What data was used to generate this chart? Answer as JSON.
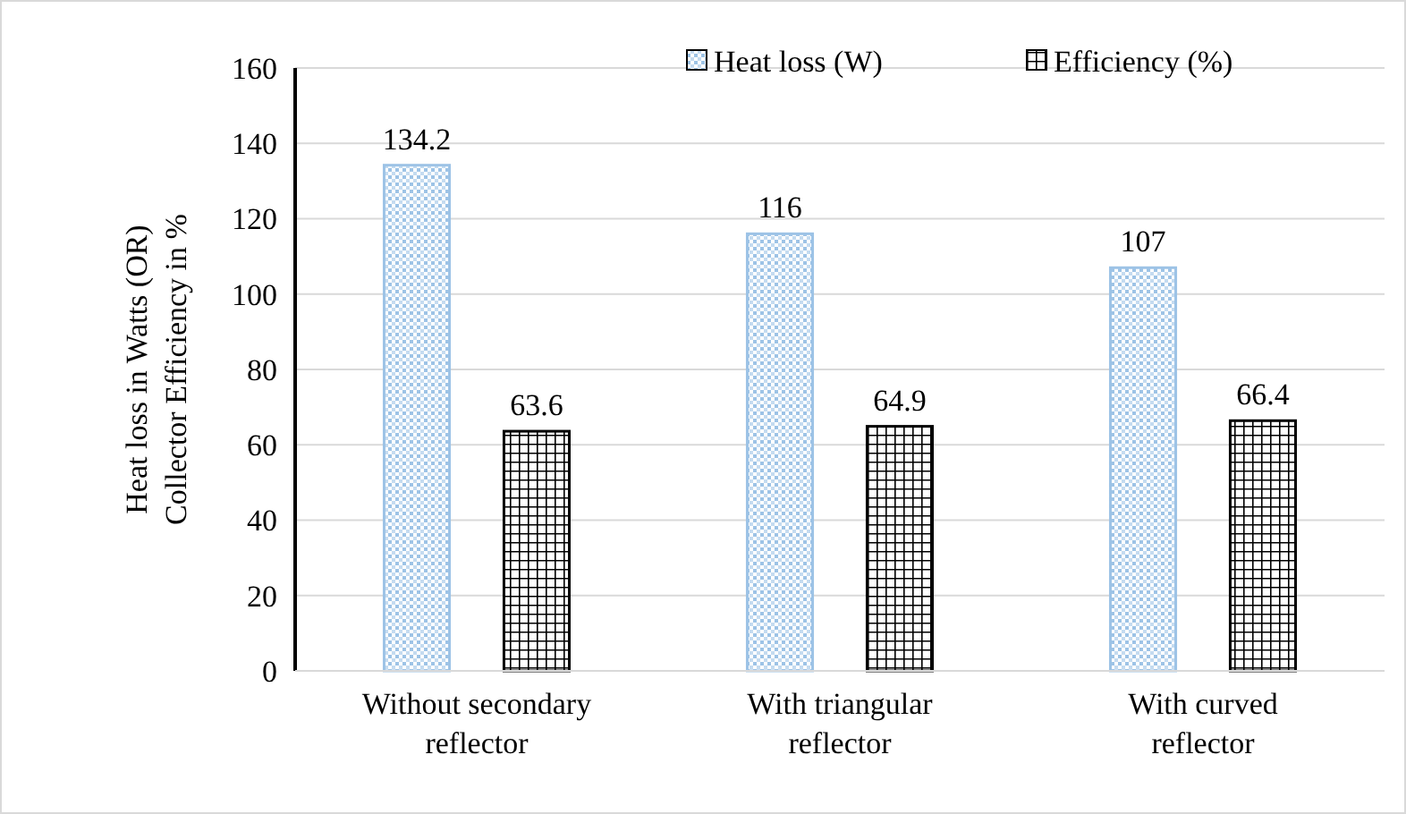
{
  "chart_data": {
    "type": "bar",
    "ylabel": "Heat loss in Watts (OR) Collector Efficiency in %",
    "categories": [
      "Without secondary reflector",
      "With triangular reflector",
      "With curved reflector"
    ],
    "series": [
      {
        "name": "Heat loss (W)",
        "color": "#9dc3e6",
        "values": [
          134.2,
          116,
          107
        ]
      },
      {
        "name": "Efficiency (%)",
        "color": "#000000",
        "values": [
          63.6,
          64.9,
          66.4
        ]
      }
    ],
    "ylim": [
      0,
      160
    ],
    "yticks": [
      0,
      20,
      40,
      60,
      80,
      100,
      120,
      140,
      160
    ],
    "grid": "y",
    "legend": "top right",
    "data_labels": true
  }
}
